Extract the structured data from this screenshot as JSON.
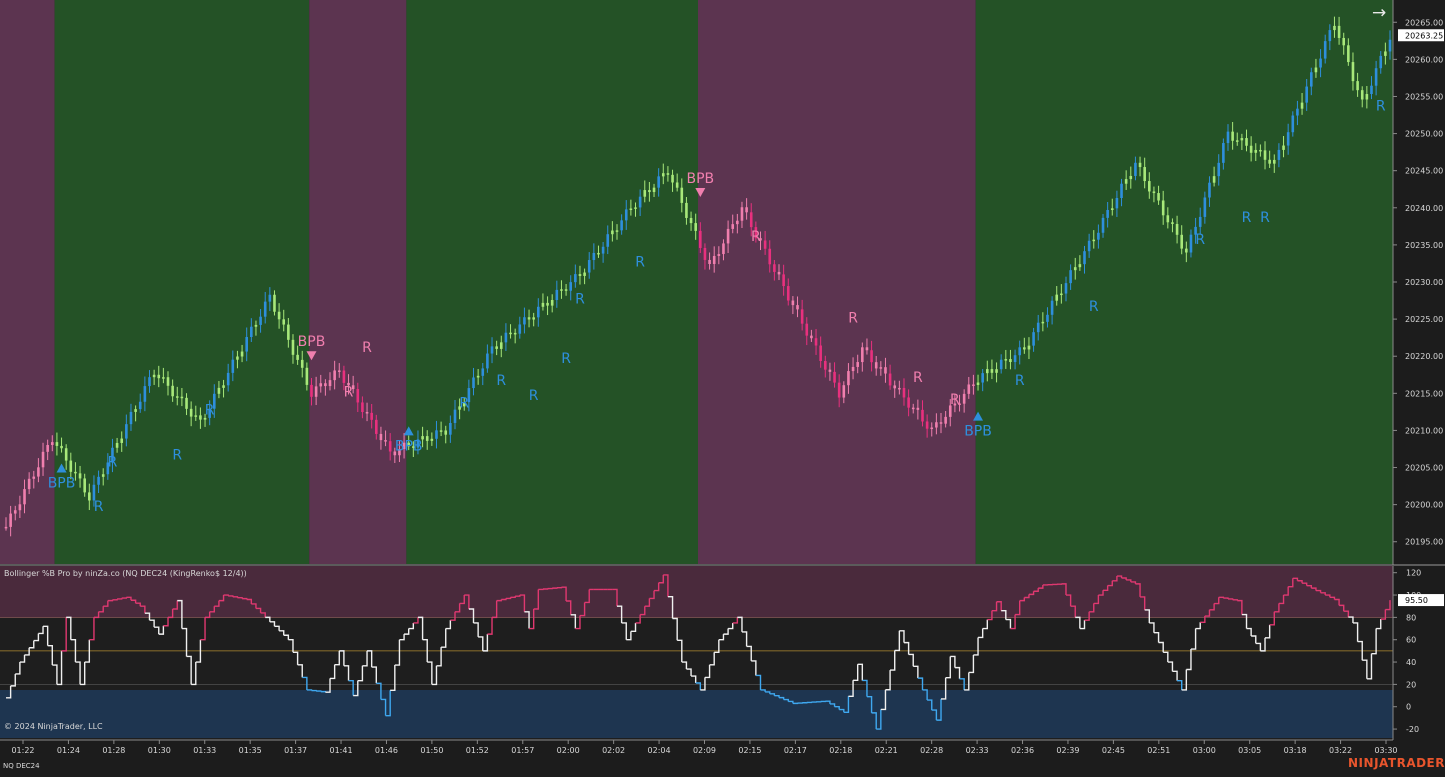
{
  "indicator_label": "Bollinger %B Pro by ninZa.co (NQ DEC24 (KingRenko$ 12/4))",
  "copyright": "© 2024 NinjaTrader, LLC",
  "instrument": "NQ DEC24",
  "brand": "NINJATRADER",
  "scroll_icon": "right-arrow-icon",
  "colors": {
    "bull_zone": "#245226",
    "bear_zone": "#5c3450",
    "bar_up": "#2e8fdc",
    "bar_down": "#e8307e",
    "bar_up_weak": "#a8e87a",
    "bar_down_weak": "#f07fae",
    "osc_high": "#e03870",
    "osc_mid": "#f0f0f0",
    "osc_low": "#3fa8f0",
    "signal_buy": "#2e8fdc",
    "signal_sell": "#f07fae"
  },
  "chart_data": [
    {
      "type": "candlestick",
      "title": "",
      "ylim": [
        20192,
        20268
      ],
      "y_ticks": [
        20195,
        20200,
        20205,
        20210,
        20215,
        20220,
        20225,
        20230,
        20235,
        20240,
        20245,
        20250,
        20255,
        20260,
        20265
      ],
      "y_tick_labels": [
        "20195.00",
        "20200.00",
        "20205.00",
        "20210.00",
        "20215.00",
        "20220.00",
        "20225.00",
        "20230.00",
        "20235.00",
        "20240.00",
        "20245.00",
        "20250.00",
        "20255.00",
        "20260.00",
        "20265.00"
      ],
      "last_price": "20263.25",
      "x_labels": [
        "01:22",
        "01:24",
        "01:28",
        "01:30",
        "01:33",
        "01:35",
        "01:37",
        "01:41",
        "01:46",
        "01:50",
        "01:52",
        "01:57",
        "02:00",
        "02:02",
        "02:04",
        "02:09",
        "02:15",
        "02:17",
        "02:18",
        "02:21",
        "02:28",
        "02:33",
        "02:36",
        "02:39",
        "02:45",
        "02:51",
        "03:00",
        "03:05",
        "03:18",
        "03:22",
        "03:30"
      ],
      "bar_count": 300,
      "trend_zones": [
        {
          "trend": "bear",
          "from_bar": 0,
          "to_bar": 11
        },
        {
          "trend": "bull",
          "from_bar": 11,
          "to_bar": 66
        },
        {
          "trend": "bear",
          "from_bar": 66,
          "to_bar": 87
        },
        {
          "trend": "bull",
          "from_bar": 87,
          "to_bar": 150
        },
        {
          "trend": "bear",
          "from_bar": 150,
          "to_bar": 210
        },
        {
          "trend": "bull",
          "from_bar": 210,
          "to_bar": 300
        }
      ],
      "price_path": [
        {
          "bar": 0,
          "price": 20197
        },
        {
          "bar": 10,
          "price": 20209
        },
        {
          "bar": 18,
          "price": 20201
        },
        {
          "bar": 32,
          "price": 20218
        },
        {
          "bar": 42,
          "price": 20211
        },
        {
          "bar": 57,
          "price": 20228
        },
        {
          "bar": 66,
          "price": 20215
        },
        {
          "bar": 72,
          "price": 20218
        },
        {
          "bar": 83,
          "price": 20207
        },
        {
          "bar": 95,
          "price": 20210
        },
        {
          "bar": 105,
          "price": 20221
        },
        {
          "bar": 124,
          "price": 20231
        },
        {
          "bar": 135,
          "price": 20240
        },
        {
          "bar": 143,
          "price": 20245
        },
        {
          "bar": 152,
          "price": 20232
        },
        {
          "bar": 159,
          "price": 20240
        },
        {
          "bar": 180,
          "price": 20215
        },
        {
          "bar": 185,
          "price": 20221
        },
        {
          "bar": 200,
          "price": 20210
        },
        {
          "bar": 210,
          "price": 20217
        },
        {
          "bar": 220,
          "price": 20221
        },
        {
          "bar": 235,
          "price": 20236
        },
        {
          "bar": 244,
          "price": 20246
        },
        {
          "bar": 255,
          "price": 20234
        },
        {
          "bar": 264,
          "price": 20250
        },
        {
          "bar": 274,
          "price": 20246
        },
        {
          "bar": 287,
          "price": 20265
        },
        {
          "bar": 293,
          "price": 20254
        },
        {
          "bar": 299,
          "price": 20263
        }
      ],
      "signals": [
        {
          "label": "BPB",
          "kind": "buy",
          "bar": 12,
          "price": 20205
        },
        {
          "label": "R",
          "kind": "buy",
          "bar": 20,
          "price": 20201
        },
        {
          "label": "R",
          "kind": "buy",
          "bar": 23,
          "price": 20207
        },
        {
          "label": "R",
          "kind": "buy",
          "bar": 37,
          "price": 20208
        },
        {
          "label": "R",
          "kind": "buy",
          "bar": 44,
          "price": 20214
        },
        {
          "label": "BPB",
          "kind": "sell",
          "bar": 66,
          "price": 20220
        },
        {
          "label": "R",
          "kind": "sell",
          "bar": 74,
          "price": 20214
        },
        {
          "label": "R",
          "kind": "sell",
          "bar": 78,
          "price": 20220
        },
        {
          "label": "BPB",
          "kind": "buy",
          "bar": 87,
          "price": 20210
        },
        {
          "label": "R",
          "kind": "buy",
          "bar": 99,
          "price": 20215
        },
        {
          "label": "R",
          "kind": "buy",
          "bar": 107,
          "price": 20218
        },
        {
          "label": "R",
          "kind": "buy",
          "bar": 114,
          "price": 20216
        },
        {
          "label": "R",
          "kind": "buy",
          "bar": 121,
          "price": 20221
        },
        {
          "label": "R",
          "kind": "buy",
          "bar": 124,
          "price": 20229
        },
        {
          "label": "R",
          "kind": "buy",
          "bar": 137,
          "price": 20234
        },
        {
          "label": "BPB",
          "kind": "sell",
          "bar": 150,
          "price": 20242
        },
        {
          "label": "R",
          "kind": "sell",
          "bar": 162,
          "price": 20235
        },
        {
          "label": "R",
          "kind": "sell",
          "bar": 183,
          "price": 20224
        },
        {
          "label": "R",
          "kind": "sell",
          "bar": 197,
          "price": 20216
        },
        {
          "label": "R",
          "kind": "sell",
          "bar": 205,
          "price": 20213
        },
        {
          "label": "BPB",
          "kind": "buy",
          "bar": 210,
          "price": 20212
        },
        {
          "label": "R",
          "kind": "buy",
          "bar": 219,
          "price": 20218
        },
        {
          "label": "R",
          "kind": "buy",
          "bar": 235,
          "price": 20228
        },
        {
          "label": "R",
          "kind": "buy",
          "bar": 258,
          "price": 20237
        },
        {
          "label": "R",
          "kind": "buy",
          "bar": 268,
          "price": 20240
        },
        {
          "label": "R",
          "kind": "buy",
          "bar": 272,
          "price": 20240
        },
        {
          "label": "R",
          "kind": "buy",
          "bar": 297,
          "price": 20255
        }
      ]
    },
    {
      "type": "line",
      "title": "Bollinger %B Pro by ninZa.co (NQ DEC24 (KingRenko$ 12/4))",
      "ylim": [
        -28,
        126
      ],
      "y_ticks": [
        120,
        100,
        80,
        60,
        40,
        20,
        0,
        -20
      ],
      "y_tick_labels": [
        "120",
        "100",
        "80",
        "60",
        "40",
        "20",
        "0",
        "-20"
      ],
      "last_value": "95.50",
      "upper_zone": 80,
      "lower_zone": 15,
      "mid_line": 50,
      "path": [
        {
          "bar": 0,
          "value": 8
        },
        {
          "bar": 3,
          "value": 40
        },
        {
          "bar": 8,
          "value": 72
        },
        {
          "bar": 11,
          "value": 20
        },
        {
          "bar": 13,
          "value": 80
        },
        {
          "bar": 16,
          "value": 20
        },
        {
          "bar": 19,
          "value": 80
        },
        {
          "bar": 22,
          "value": 95
        },
        {
          "bar": 26,
          "value": 98
        },
        {
          "bar": 29,
          "value": 90
        },
        {
          "bar": 33,
          "value": 65
        },
        {
          "bar": 37,
          "value": 95
        },
        {
          "bar": 40,
          "value": 20
        },
        {
          "bar": 43,
          "value": 80
        },
        {
          "bar": 47,
          "value": 100
        },
        {
          "bar": 52,
          "value": 96
        },
        {
          "bar": 56,
          "value": 80
        },
        {
          "bar": 61,
          "value": 60
        },
        {
          "bar": 65,
          "value": 15
        },
        {
          "bar": 69,
          "value": 13
        },
        {
          "bar": 72,
          "value": 50
        },
        {
          "bar": 75,
          "value": 10
        },
        {
          "bar": 78,
          "value": 50
        },
        {
          "bar": 82,
          "value": -8
        },
        {
          "bar": 85,
          "value": 60
        },
        {
          "bar": 89,
          "value": 80
        },
        {
          "bar": 92,
          "value": 20
        },
        {
          "bar": 95,
          "value": 70
        },
        {
          "bar": 99,
          "value": 100
        },
        {
          "bar": 103,
          "value": 50
        },
        {
          "bar": 106,
          "value": 95
        },
        {
          "bar": 111,
          "value": 100
        },
        {
          "bar": 113,
          "value": 70
        },
        {
          "bar": 115,
          "value": 105
        },
        {
          "bar": 120,
          "value": 107
        },
        {
          "bar": 123,
          "value": 70
        },
        {
          "bar": 126,
          "value": 105
        },
        {
          "bar": 131,
          "value": 105
        },
        {
          "bar": 134,
          "value": 60
        },
        {
          "bar": 138,
          "value": 90
        },
        {
          "bar": 142,
          "value": 118
        },
        {
          "bar": 146,
          "value": 40
        },
        {
          "bar": 150,
          "value": 15
        },
        {
          "bar": 154,
          "value": 60
        },
        {
          "bar": 158,
          "value": 80
        },
        {
          "bar": 163,
          "value": 15
        },
        {
          "bar": 170,
          "value": 3
        },
        {
          "bar": 177,
          "value": 5
        },
        {
          "bar": 181,
          "value": -5
        },
        {
          "bar": 184,
          "value": 38
        },
        {
          "bar": 188,
          "value": -20
        },
        {
          "bar": 193,
          "value": 68
        },
        {
          "bar": 198,
          "value": 15
        },
        {
          "bar": 201,
          "value": -12
        },
        {
          "bar": 204,
          "value": 45
        },
        {
          "bar": 207,
          "value": 15
        },
        {
          "bar": 210,
          "value": 62
        },
        {
          "bar": 214,
          "value": 94
        },
        {
          "bar": 217,
          "value": 70
        },
        {
          "bar": 219,
          "value": 95
        },
        {
          "bar": 224,
          "value": 109
        },
        {
          "bar": 228,
          "value": 110
        },
        {
          "bar": 232,
          "value": 70
        },
        {
          "bar": 236,
          "value": 100
        },
        {
          "bar": 240,
          "value": 117
        },
        {
          "bar": 244,
          "value": 110
        },
        {
          "bar": 247,
          "value": 75
        },
        {
          "bar": 251,
          "value": 40
        },
        {
          "bar": 254,
          "value": 15
        },
        {
          "bar": 257,
          "value": 70
        },
        {
          "bar": 262,
          "value": 98
        },
        {
          "bar": 266,
          "value": 95
        },
        {
          "bar": 268,
          "value": 70
        },
        {
          "bar": 271,
          "value": 50
        },
        {
          "bar": 274,
          "value": 85
        },
        {
          "bar": 278,
          "value": 115
        },
        {
          "bar": 283,
          "value": 104
        },
        {
          "bar": 287,
          "value": 96
        },
        {
          "bar": 291,
          "value": 75
        },
        {
          "bar": 294,
          "value": 25
        },
        {
          "bar": 296,
          "value": 70
        },
        {
          "bar": 299,
          "value": 95.5
        }
      ]
    }
  ]
}
